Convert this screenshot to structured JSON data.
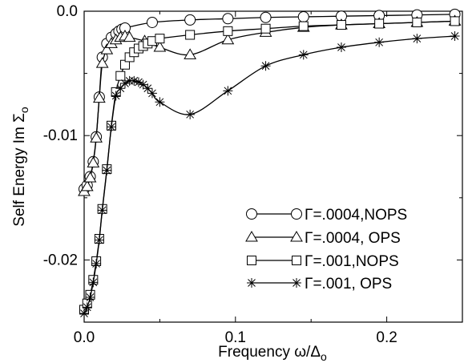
{
  "chart_data": {
    "type": "line",
    "xlabel": "Frequency ω/Δ",
    "xlabel_sub": "o",
    "ylabel": "Self Energy Im Σ",
    "ylabel_sub": "o",
    "xlim": [
      0.0,
      0.25
    ],
    "ylim": [
      -0.025,
      0.0
    ],
    "x_ticks": [
      0.0,
      0.1,
      0.2
    ],
    "x_tick_labels": [
      "0.0",
      "0.1",
      "0.2"
    ],
    "y_ticks": [
      0.0,
      -0.01,
      -0.02
    ],
    "y_tick_labels": [
      "0.0",
      "-0.01",
      "-0.02"
    ],
    "grid": false,
    "legend_position": "lower-right",
    "series": [
      {
        "name": "Γ=.0004,NOPS",
        "marker": "circle",
        "x": [
          0.0,
          0.002,
          0.004,
          0.006,
          0.008,
          0.01,
          0.012,
          0.015,
          0.018,
          0.021,
          0.023,
          0.025,
          0.027,
          0.045,
          0.07,
          0.095,
          0.12,
          0.145,
          0.17,
          0.195,
          0.22,
          0.245
        ],
        "values": [
          -0.0143,
          -0.014,
          -0.0133,
          -0.0121,
          -0.0101,
          -0.0069,
          -0.0037,
          -0.0026,
          -0.0021,
          -0.0018,
          -0.0016,
          -0.00145,
          -0.00135,
          -0.0009,
          -0.0007,
          -0.0006,
          -0.0005,
          -0.00045,
          -0.0004,
          -0.00035,
          -0.0003,
          -0.00025
        ]
      },
      {
        "name": "Γ=.0004, OPS",
        "marker": "triangle",
        "x": [
          0.0,
          0.002,
          0.004,
          0.006,
          0.008,
          0.01,
          0.012,
          0.015,
          0.018,
          0.021,
          0.024,
          0.027,
          0.03,
          0.04,
          0.05,
          0.07,
          0.095,
          0.12,
          0.145,
          0.17,
          0.195,
          0.22,
          0.245
        ],
        "values": [
          -0.0145,
          -0.0141,
          -0.0134,
          -0.0122,
          -0.0102,
          -0.007,
          -0.0042,
          -0.0031,
          -0.0026,
          -0.0023,
          -0.0021,
          -0.002,
          -0.0021,
          -0.0024,
          -0.0029,
          -0.0035,
          -0.0023,
          -0.0017,
          -0.0013,
          -0.0011,
          -0.001,
          -0.0009,
          -0.0008
        ]
      },
      {
        "name": "Γ=.001,NOPS",
        "marker": "square",
        "x": [
          0.0,
          0.002,
          0.004,
          0.006,
          0.008,
          0.01,
          0.012,
          0.015,
          0.018,
          0.021,
          0.024,
          0.027,
          0.03,
          0.033,
          0.036,
          0.039,
          0.042,
          0.045,
          0.05,
          0.07,
          0.095,
          0.12,
          0.145,
          0.17,
          0.195,
          0.22,
          0.245
        ],
        "values": [
          -0.024,
          -0.0235,
          -0.0228,
          -0.0216,
          -0.0201,
          -0.0183,
          -0.0159,
          -0.0127,
          -0.0092,
          -0.0065,
          -0.0052,
          -0.0043,
          -0.0037,
          -0.0033,
          -0.003,
          -0.0028,
          -0.0026,
          -0.0024,
          -0.0022,
          -0.0019,
          -0.0016,
          -0.0014,
          -0.0012,
          -0.0011,
          -0.001,
          -0.0009,
          -0.0008
        ]
      },
      {
        "name": "Γ=.001, OPS",
        "marker": "star",
        "x": [
          0.0,
          0.002,
          0.004,
          0.006,
          0.008,
          0.01,
          0.012,
          0.015,
          0.018,
          0.021,
          0.024,
          0.027,
          0.03,
          0.033,
          0.036,
          0.039,
          0.042,
          0.045,
          0.05,
          0.07,
          0.095,
          0.12,
          0.145,
          0.17,
          0.195,
          0.22,
          0.245
        ],
        "values": [
          -0.0243,
          -0.0238,
          -0.023,
          -0.0218,
          -0.0203,
          -0.0184,
          -0.016,
          -0.0128,
          -0.0093,
          -0.0068,
          -0.0062,
          -0.0058,
          -0.0056,
          -0.0056,
          -0.0057,
          -0.0059,
          -0.0062,
          -0.0066,
          -0.0073,
          -0.0083,
          -0.0064,
          -0.0044,
          -0.0035,
          -0.0029,
          -0.0025,
          -0.0022,
          -0.002
        ]
      }
    ]
  }
}
